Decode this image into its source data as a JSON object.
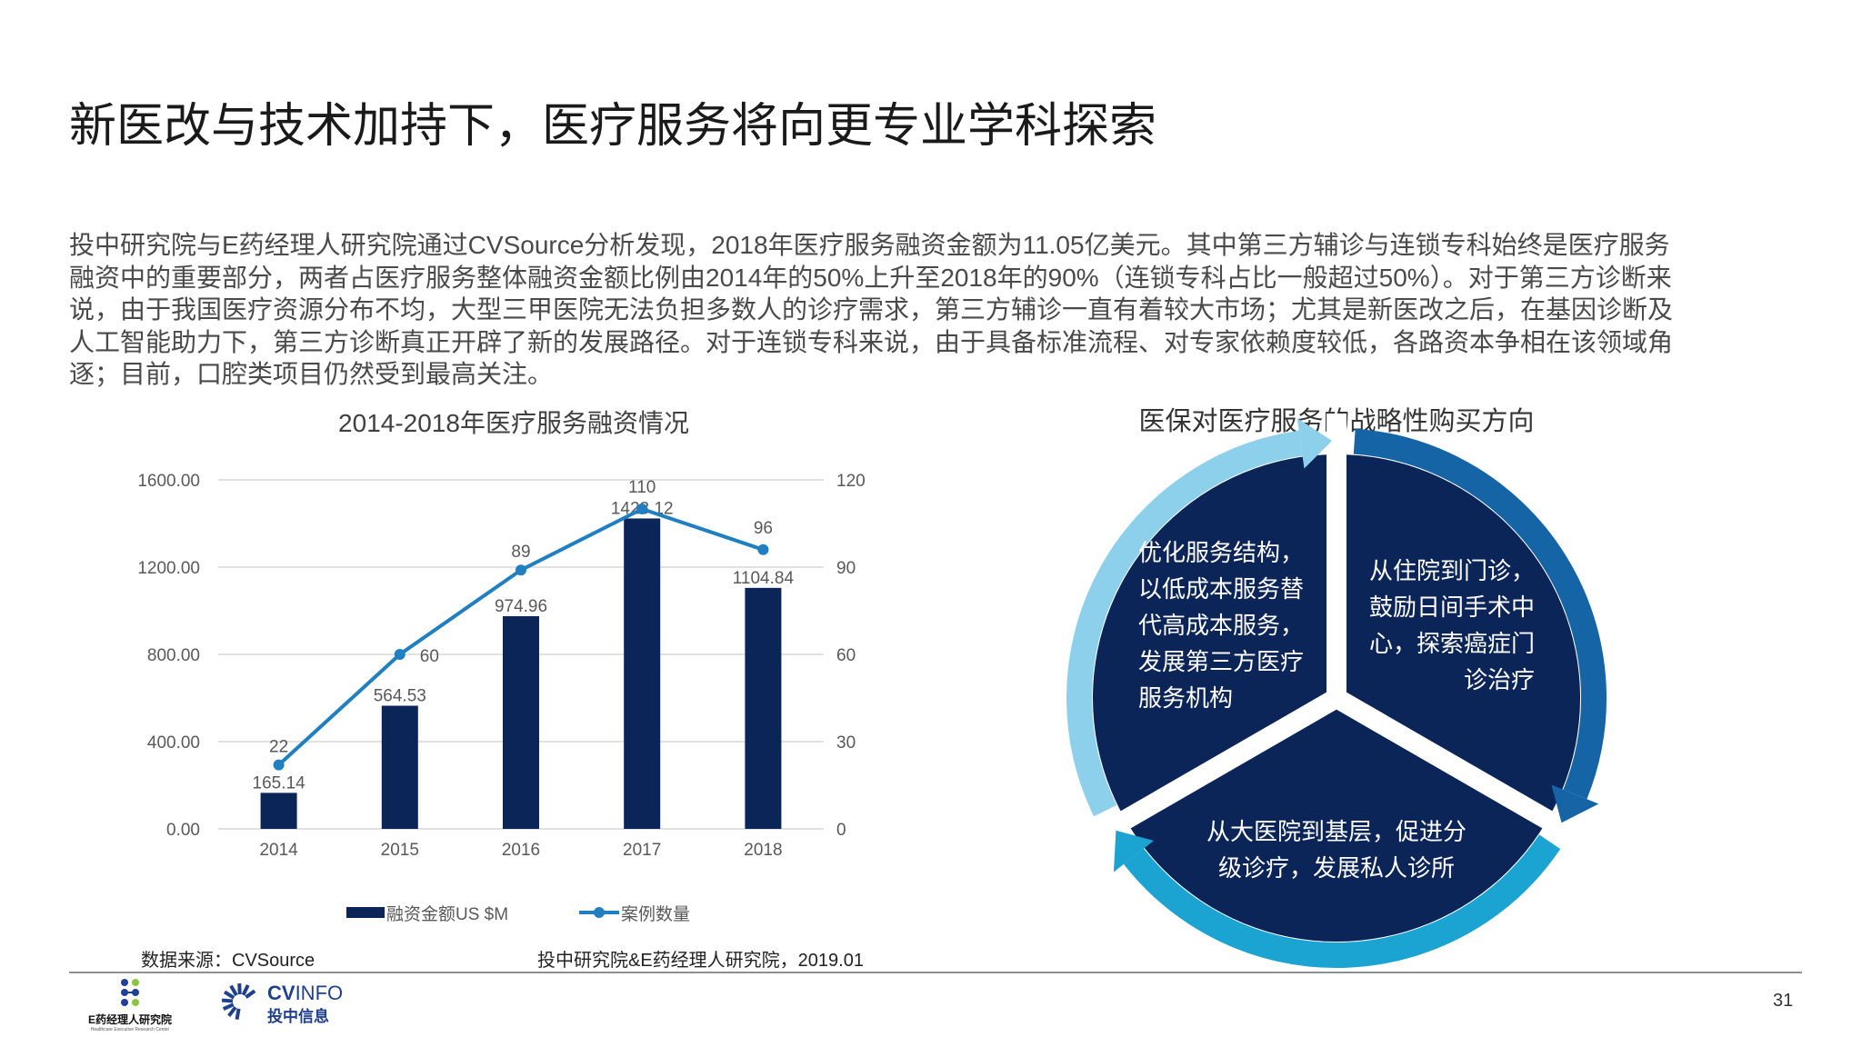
{
  "title": "新医改与技术加持下，医疗服务将向更专业学科探索",
  "paragraph_lines": [
    "投中研究院与E药经理人研究院通过CVSource分析发现，2018年医疗服务融资金额为11.05亿美元。其中第三方辅诊与连锁专科始终是医疗服务",
    "融资中的重要部分，两者占医疗服务整体融资金额比例由2014年的50%上升至2018年的90%（连锁专科占比一般超过50%）。对于第三方诊断来",
    "说，由于我国医疗资源分布不均，大型三甲医院无法负担多数人的诊疗需求，第三方辅诊一直有着较大市场；尤其是新医改之后，在基因诊断及",
    "人工智能助力下，第三方诊断真正开辟了新的发展路径。对于连锁专科来说，由于具备标准流程、对专家依赖度较低，各路资本争相在该领域角",
    "逐；目前，口腔类项目仍然受到最高关注。"
  ],
  "chart_data": {
    "type": "bar+line",
    "title": "2014-2018年医疗服务融资情况",
    "categories": [
      "2014",
      "2015",
      "2016",
      "2017",
      "2018"
    ],
    "series": [
      {
        "name": "融资金额US $M",
        "type": "bar",
        "axis": "left",
        "values": [
          165.14,
          564.53,
          974.96,
          1423.12,
          1104.84
        ],
        "labels": [
          "165.14",
          "564.53",
          "974.96",
          "1423.12",
          "1104.84"
        ],
        "color": "#0c2559"
      },
      {
        "name": "案例数量",
        "type": "line",
        "axis": "right",
        "values": [
          22,
          60,
          89,
          110,
          96
        ],
        "labels": [
          "22",
          "60",
          "89",
          "110",
          "96"
        ],
        "color": "#1f7fc0"
      }
    ],
    "left_axis": {
      "ylim": [
        0,
        1600
      ],
      "ticks": [
        "0.00",
        "400.00",
        "800.00",
        "1200.00",
        "1600.00"
      ]
    },
    "right_axis": {
      "ylim": [
        0,
        120
      ],
      "ticks": [
        "0",
        "30",
        "60",
        "90",
        "120"
      ]
    },
    "grid": true,
    "legend": "bottom"
  },
  "source_left": "数据来源：CVSource",
  "source_right": "投中研究院&E药经理人研究院，2019.01",
  "diagram": {
    "title": "医保对医疗服务的战略性购买方向",
    "sectors": [
      {
        "lines": [
          "优化服务结构，",
          "以低成本服务替",
          "代高成本服务，",
          "发展第三方医疗",
          "服务机构"
        ],
        "arrow_color": "#8dd0ec"
      },
      {
        "lines": [
          "从住院到门诊，",
          "鼓励日间手术中",
          "心，探索癌症门",
          "诊治疗"
        ],
        "arrow_color": "#1565a6"
      },
      {
        "lines": [
          "从大医院到基层，促进分",
          "级诊疗，发展私人诊所"
        ],
        "arrow_color": "#1ba3d2"
      }
    ],
    "fill_color": "#0c2559"
  },
  "logos": {
    "e_pharma": {
      "name": "E药经理人研究院",
      "subtitle": "Healthcare Executive Research Center"
    },
    "cvinfo": {
      "name_cv": "CV",
      "name_info": "INFO",
      "name_cn": "投中信息"
    }
  },
  "page_number": "31"
}
